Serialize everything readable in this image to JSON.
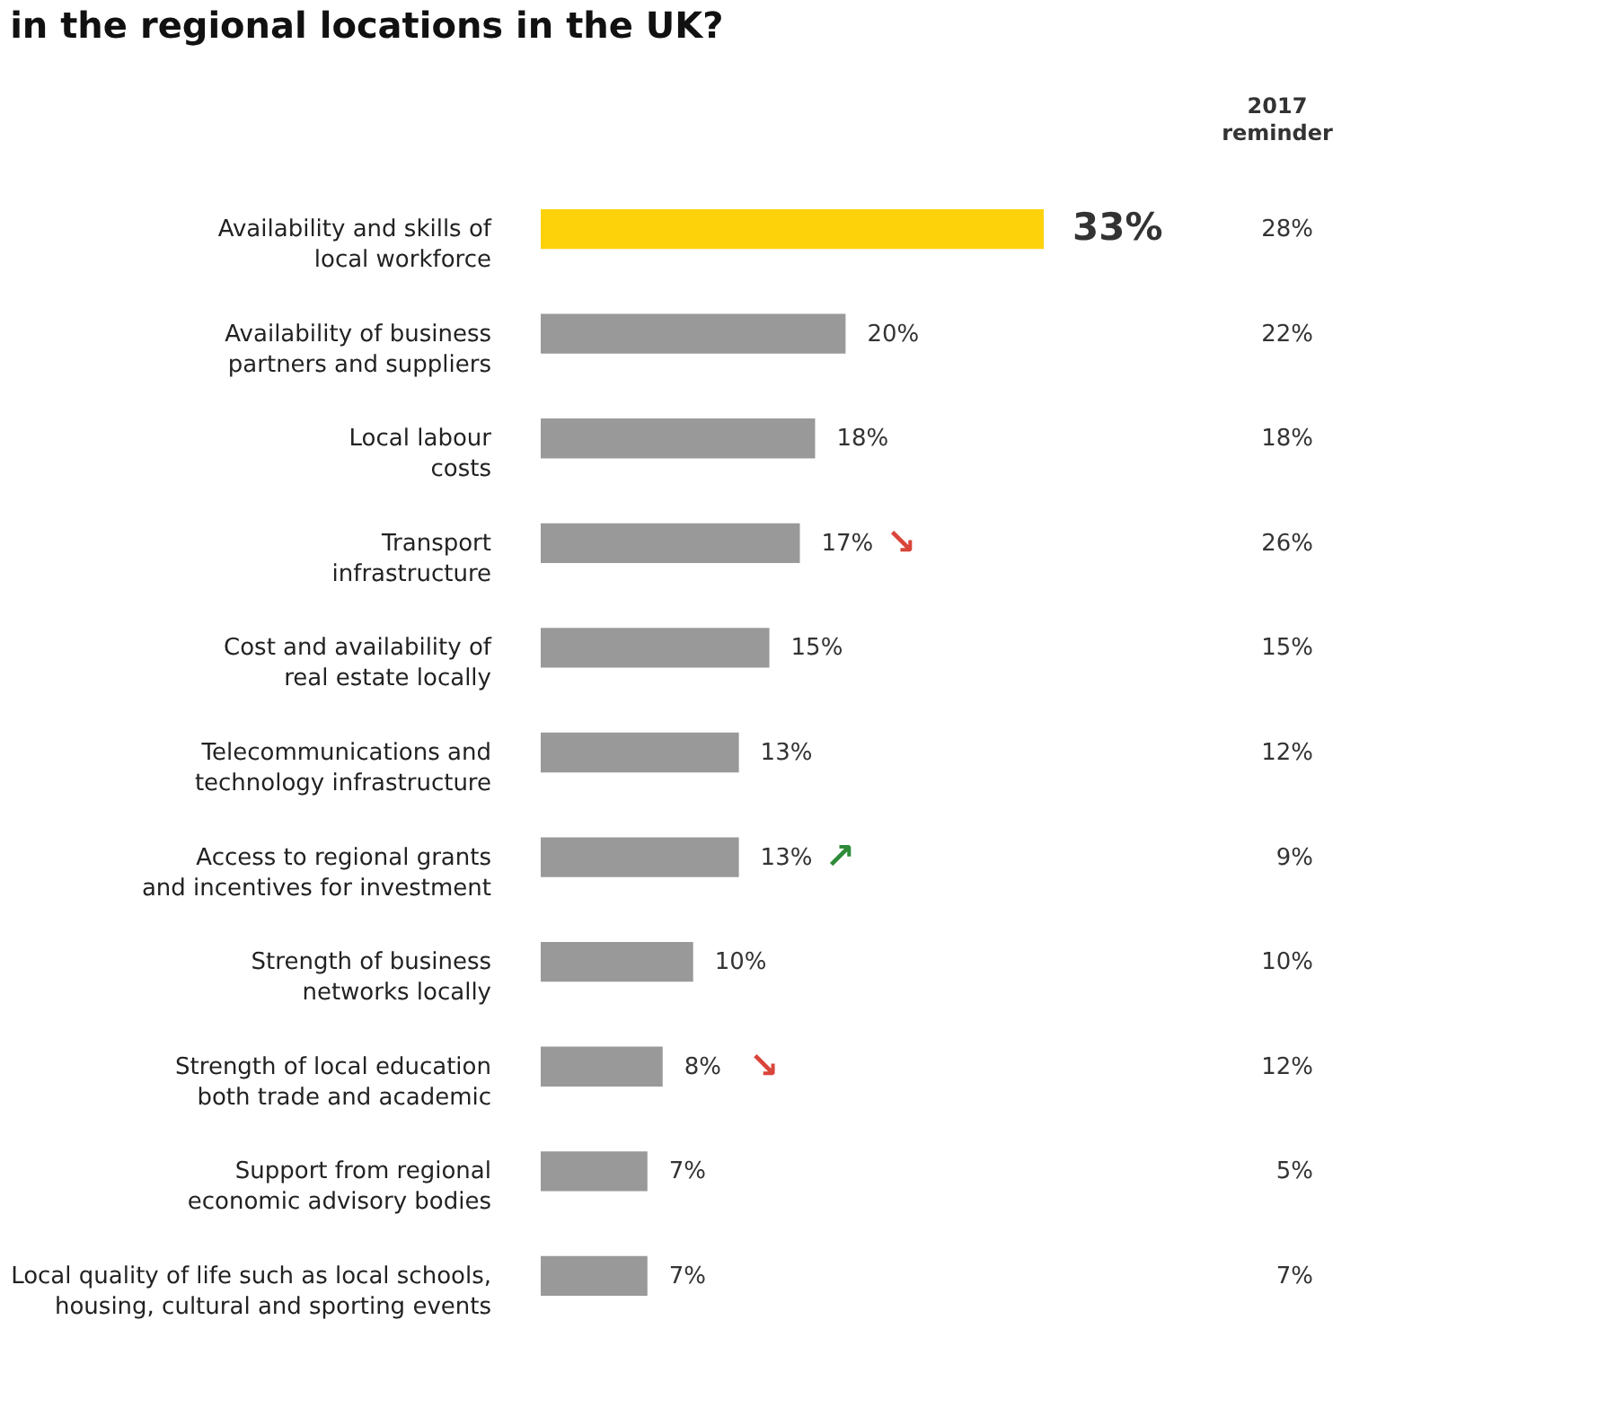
{
  "chart_data": {
    "type": "bar",
    "orientation": "horizontal",
    "title": "in the regional locations in the UK?",
    "categories": [
      "Availability and skills of\nlocal workforce",
      "Availability of business\npartners and suppliers",
      "Local labour\ncosts",
      "Transport\ninfrastructure",
      "Cost and availability of\nreal estate locally",
      "Telecommunications and\ntechnology infrastructure",
      "Access to regional grants\nand incentives for investment",
      "Strength of business\nnetworks locally",
      "Strength of local education\nboth trade and academic",
      "Support from regional\neconomic advisory bodies",
      "Local quality of life such as local schools,\nhousing, cultural and sporting events"
    ],
    "values": [
      33,
      20,
      18,
      17,
      15,
      13,
      13,
      10,
      8,
      7,
      7
    ],
    "value_labels": [
      "33%",
      "20%",
      "18%",
      "17%",
      "15%",
      "13%",
      "13%",
      "10%",
      "8%",
      "7%",
      "7%"
    ],
    "colors": [
      "#fdd20b",
      "#999999",
      "#999999",
      "#999999",
      "#999999",
      "#999999",
      "#999999",
      "#999999",
      "#999999",
      "#999999",
      "#999999"
    ],
    "annotations": [
      "2017\nreminder",
      "28%",
      "22%",
      "18%",
      "26%",
      "15%",
      "12%",
      "9%",
      "10%",
      "12%",
      "5%",
      "7%",
      {
        "text": "↘",
        "x": 17,
        "y": "Transport\ninfrastructure"
      },
      {
        "text": "↗",
        "x": 13,
        "y": "Access to regional grants\nand incentives for investment"
      },
      {
        "text": "↘",
        "x": 8,
        "y": "Strength of local education\nboth trade and academic"
      }
    ]
  }
}
